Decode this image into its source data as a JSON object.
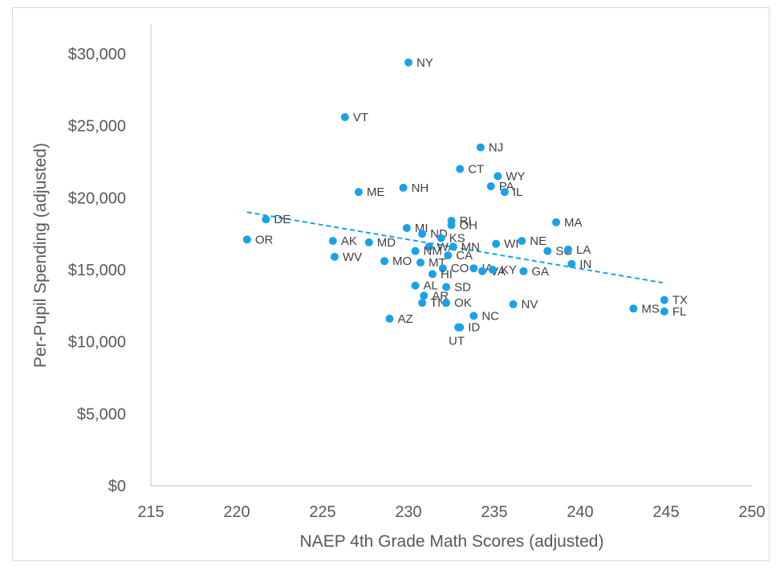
{
  "chart_data": {
    "type": "scatter",
    "title": "",
    "xlabel": "NAEP 4th Grade Math Scores (adjusted)",
    "ylabel": "Per-Pupil Spending (adjusted)",
    "xlim": [
      215,
      250
    ],
    "ylim": [
      0,
      30000
    ],
    "xticks": [
      "215",
      "220",
      "225",
      "230",
      "235",
      "240",
      "245",
      "250"
    ],
    "yticks": [
      "$0",
      "$5,000",
      "$10,000",
      "$15,000",
      "$20,000",
      "$25,000",
      "$30,000"
    ],
    "grid": false,
    "legend": "none",
    "marker_color": "#1AA1E8",
    "trendline": {
      "style": "dashed",
      "x": [
        220.6,
        244.8
      ],
      "y": [
        19000,
        14100
      ]
    },
    "points": [
      {
        "label": "NY",
        "x": 230.0,
        "y": 29400
      },
      {
        "label": "VT",
        "x": 226.3,
        "y": 25600
      },
      {
        "label": "NJ",
        "x": 234.2,
        "y": 23500
      },
      {
        "label": "CT",
        "x": 233.0,
        "y": 22000
      },
      {
        "label": "WY",
        "x": 235.2,
        "y": 21500
      },
      {
        "label": "PA",
        "x": 234.8,
        "y": 20800
      },
      {
        "label": "IL",
        "x": 235.6,
        "y": 20400
      },
      {
        "label": "NH",
        "x": 229.7,
        "y": 20700
      },
      {
        "label": "ME",
        "x": 227.1,
        "y": 20400
      },
      {
        "label": "DE",
        "x": 221.7,
        "y": 18500
      },
      {
        "label": "RI",
        "x": 232.5,
        "y": 18400
      },
      {
        "label": "OH",
        "x": 232.5,
        "y": 18100
      },
      {
        "label": "MA",
        "x": 238.6,
        "y": 18300
      },
      {
        "label": "MI",
        "x": 229.9,
        "y": 17900
      },
      {
        "label": "ND",
        "x": 230.8,
        "y": 17500
      },
      {
        "label": "KS",
        "x": 231.9,
        "y": 17200
      },
      {
        "label": "OR",
        "x": 220.6,
        "y": 17100
      },
      {
        "label": "AK",
        "x": 225.6,
        "y": 17000
      },
      {
        "label": "MD",
        "x": 227.7,
        "y": 16900
      },
      {
        "label": "WA",
        "x": 231.2,
        "y": 16600
      },
      {
        "label": "MN",
        "x": 232.6,
        "y": 16600
      },
      {
        "label": "WI",
        "x": 235.1,
        "y": 16800
      },
      {
        "label": "NE",
        "x": 236.6,
        "y": 17000
      },
      {
        "label": "NM",
        "x": 230.4,
        "y": 16300
      },
      {
        "label": "CA",
        "x": 232.3,
        "y": 16000
      },
      {
        "label": "SC",
        "x": 238.1,
        "y": 16300
      },
      {
        "label": "LA",
        "x": 239.3,
        "y": 16400
      },
      {
        "label": "WV",
        "x": 225.7,
        "y": 15900
      },
      {
        "label": "MO",
        "x": 228.6,
        "y": 15600
      },
      {
        "label": "MT",
        "x": 230.7,
        "y": 15500
      },
      {
        "label": "IN",
        "x": 239.5,
        "y": 15400
      },
      {
        "label": "CO",
        "x": 232.0,
        "y": 15100
      },
      {
        "label": "HI",
        "x": 231.4,
        "y": 14700
      },
      {
        "label": "IA",
        "x": 233.8,
        "y": 15100
      },
      {
        "label": "VA",
        "x": 234.3,
        "y": 14900
      },
      {
        "label": "KY",
        "x": 234.9,
        "y": 15000
      },
      {
        "label": "GA",
        "x": 236.7,
        "y": 14900
      },
      {
        "label": "AL",
        "x": 230.4,
        "y": 13900
      },
      {
        "label": "SD",
        "x": 232.2,
        "y": 13800
      },
      {
        "label": "AR",
        "x": 230.9,
        "y": 13200
      },
      {
        "label": "TN",
        "x": 230.8,
        "y": 12700
      },
      {
        "label": "OK",
        "x": 232.2,
        "y": 12700
      },
      {
        "label": "NV",
        "x": 236.1,
        "y": 12600
      },
      {
        "label": "TX",
        "x": 244.9,
        "y": 12900
      },
      {
        "label": "MS",
        "x": 243.1,
        "y": 12300
      },
      {
        "label": "FL",
        "x": 244.9,
        "y": 12100
      },
      {
        "label": "NC",
        "x": 233.8,
        "y": 11800
      },
      {
        "label": "AZ",
        "x": 228.9,
        "y": 11600
      },
      {
        "label": "ID",
        "x": 233.0,
        "y": 11000
      },
      {
        "label": "UT",
        "x": 232.9,
        "y": 11000
      }
    ]
  }
}
